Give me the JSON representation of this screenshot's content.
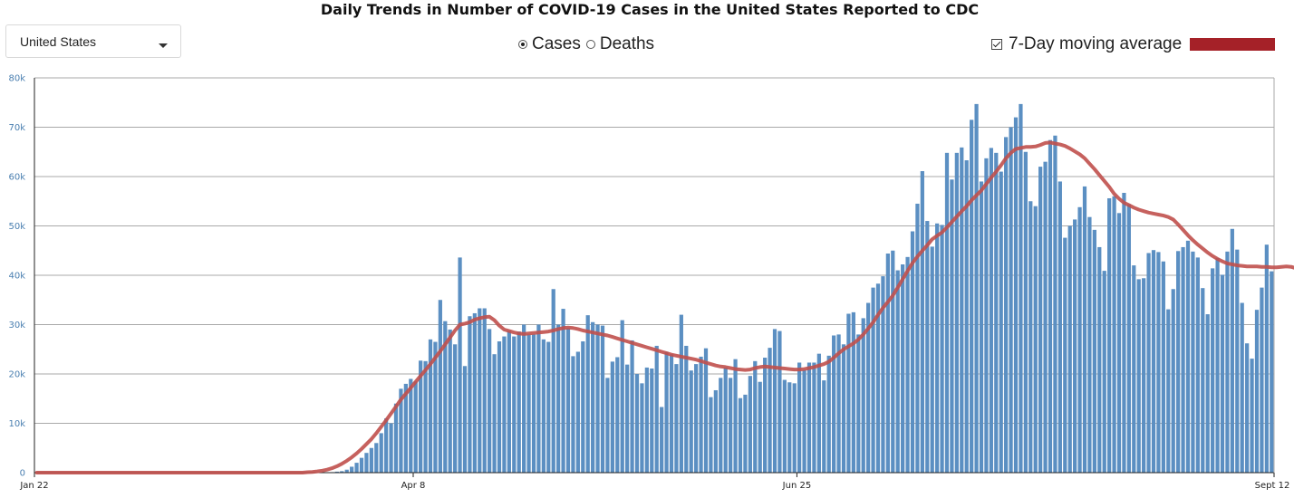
{
  "title": "Daily Trends in Number of COVID-19 Cases in the United States Reported to CDC",
  "controls": {
    "region": "United States",
    "metric_options": [
      "Cases",
      "Deaths"
    ],
    "selected_metric": "Cases",
    "moving_average_label": "7-Day moving average",
    "moving_average_checked": true
  },
  "colors": {
    "bar": "#5b8fc2",
    "line": "#c0504d",
    "swatch": "#a52128",
    "grid": "#a9a9a9"
  },
  "chart_data": {
    "type": "bar",
    "title": "Daily Trends in Number of COVID-19 Cases in the United States Reported to CDC",
    "x_start": "2020-01-22",
    "x_end": "2020-09-12",
    "x_ticks": [
      "Jan 22",
      "Apr 8",
      "Jun 25",
      "Sept 12"
    ],
    "ylim": [
      0,
      80000
    ],
    "y_ticks": [
      "0",
      "10k",
      "20k",
      "30k",
      "40k",
      "50k",
      "60k",
      "70k",
      "80k"
    ],
    "grid": true,
    "series": [
      {
        "name": "Cases",
        "type": "bar",
        "values": [
          0,
          0,
          0,
          0,
          0,
          0,
          0,
          0,
          0,
          0,
          0,
          0,
          0,
          0,
          0,
          0,
          0,
          0,
          0,
          0,
          0,
          0,
          0,
          0,
          0,
          0,
          0,
          0,
          0,
          0,
          0,
          0,
          0,
          0,
          0,
          0,
          0,
          0,
          0,
          0,
          0,
          0,
          0,
          0,
          0,
          0,
          0,
          0,
          0,
          0,
          0,
          0,
          0,
          0,
          0,
          0,
          0,
          0,
          0,
          0,
          100,
          200,
          300,
          600,
          1200,
          2000,
          3000,
          4000,
          5000,
          6000,
          8000,
          11000,
          10000,
          14000,
          17000,
          18000,
          19000,
          18500,
          22700,
          22600,
          27000,
          26500,
          35000,
          30700,
          29000,
          26000,
          43600,
          21600,
          31700,
          32300,
          33300,
          33300,
          29100,
          24000,
          26600,
          27600,
          28700,
          27600,
          28600,
          30000,
          28000,
          28000,
          30000,
          27000,
          26500,
          37200,
          30000,
          33200,
          29300,
          23600,
          24500,
          26600,
          31900,
          30500,
          30000,
          29800,
          19200,
          22500,
          23400,
          30900,
          21900,
          26800,
          20000,
          18100,
          21300,
          21100,
          25700,
          13300,
          24500,
          24000,
          22000,
          32000,
          25700,
          20700,
          22000,
          23500,
          25200,
          15300,
          16700,
          19200,
          21300,
          19200,
          23000,
          15100,
          15800,
          19600,
          22600,
          18400,
          23300,
          25300,
          29100,
          28700,
          18800,
          18300,
          18100,
          22300,
          20800,
          22300,
          22300,
          24100,
          18700,
          23700,
          27800,
          28000,
          26000,
          32200,
          32500,
          28000,
          31300,
          34400,
          37500,
          38300,
          39800,
          44400,
          45000,
          41000,
          42200,
          43700,
          48900,
          54500,
          61100,
          51000,
          45800,
          50500,
          50200,
          64800,
          59400,
          64800,
          65900,
          63300,
          71500,
          74700,
          59000,
          63700,
          65800,
          64800,
          61000,
          68000,
          70000,
          72000,
          74700,
          65000,
          55000,
          54000,
          62000,
          63000,
          67400,
          68300,
          59000,
          47600,
          50000,
          51300,
          53800,
          58000,
          51800,
          49200,
          45700,
          40900,
          55600,
          56000,
          52600,
          56700,
          54400,
          42000,
          39200,
          39400,
          44500,
          45100,
          44700,
          42800,
          33100,
          37200,
          44900,
          45700,
          47000,
          44800,
          43600,
          37400,
          32100,
          41400,
          43500,
          40100,
          44800,
          49400,
          45200,
          34400,
          26200,
          23100,
          33000,
          37500,
          46200,
          40800
        ],
        "color": "#5b8fc2"
      },
      {
        "name": "7-Day moving average",
        "type": "line",
        "values": [
          0,
          0,
          0,
          0,
          0,
          0,
          0,
          0,
          0,
          0,
          0,
          0,
          0,
          0,
          0,
          0,
          0,
          0,
          0,
          0,
          0,
          0,
          0,
          0,
          0,
          0,
          0,
          0,
          0,
          0,
          0,
          0,
          0,
          0,
          0,
          0,
          0,
          0,
          0,
          0,
          0,
          0,
          0,
          0,
          0,
          0,
          0,
          0,
          0,
          0,
          0,
          0,
          0,
          0,
          0,
          100,
          150,
          250,
          400,
          600,
          900,
          1300,
          1800,
          2400,
          3100,
          3900,
          4800,
          5800,
          6800,
          8000,
          9300,
          10600,
          12000,
          13400,
          14800,
          16000,
          17200,
          18400,
          19600,
          20800,
          22000,
          23300,
          24600,
          26000,
          27400,
          28800,
          30000,
          30200,
          30500,
          31000,
          31300,
          31500,
          31600,
          30900,
          29800,
          29000,
          28700,
          28400,
          28200,
          28100,
          28200,
          28300,
          28400,
          28500,
          28600,
          28800,
          29100,
          29300,
          29400,
          29300,
          29100,
          28800,
          28600,
          28400,
          28200,
          28000,
          27800,
          27500,
          27200,
          26900,
          26600,
          26300,
          26000,
          25700,
          25400,
          25100,
          24800,
          24500,
          24200,
          23900,
          23700,
          23500,
          23300,
          23100,
          22900,
          22600,
          22300,
          22000,
          21700,
          21500,
          21400,
          21200,
          21000,
          20900,
          20800,
          20900,
          21200,
          21400,
          21500,
          21400,
          21300,
          21200,
          21100,
          21000,
          20900,
          20900,
          21000,
          21200,
          21400,
          21700,
          22000,
          22500,
          23300,
          24200,
          25000,
          25600,
          26200,
          27000,
          28000,
          29200,
          30500,
          32000,
          33400,
          34600,
          35900,
          37500,
          39200,
          40900,
          42500,
          43800,
          45000,
          46100,
          47300,
          48000,
          48700,
          49700,
          50800,
          51900,
          53000,
          54000,
          55200,
          56200,
          57200,
          58500,
          59800,
          61000,
          62300,
          63700,
          64800,
          65600,
          65800,
          66000,
          66000,
          66100,
          66400,
          66800,
          66900,
          66700,
          66500,
          66200,
          65700,
          65100,
          64500,
          63700,
          62600,
          61500,
          60300,
          59100,
          57900,
          56500,
          55500,
          54700,
          54200,
          53700,
          53300,
          53000,
          52700,
          52500,
          52300,
          52100,
          51800,
          51300,
          50300,
          49200,
          48100,
          47100,
          46200,
          45400,
          44600,
          43900,
          43300,
          42800,
          42400,
          42200,
          42000,
          41900,
          41800,
          41800,
          41800,
          41700,
          41700,
          41600,
          41600,
          41700,
          41800,
          41700,
          41400,
          41000,
          40300,
          39100,
          37700,
          36400,
          35600,
          35100,
          34600
        ]
      }
    ]
  }
}
